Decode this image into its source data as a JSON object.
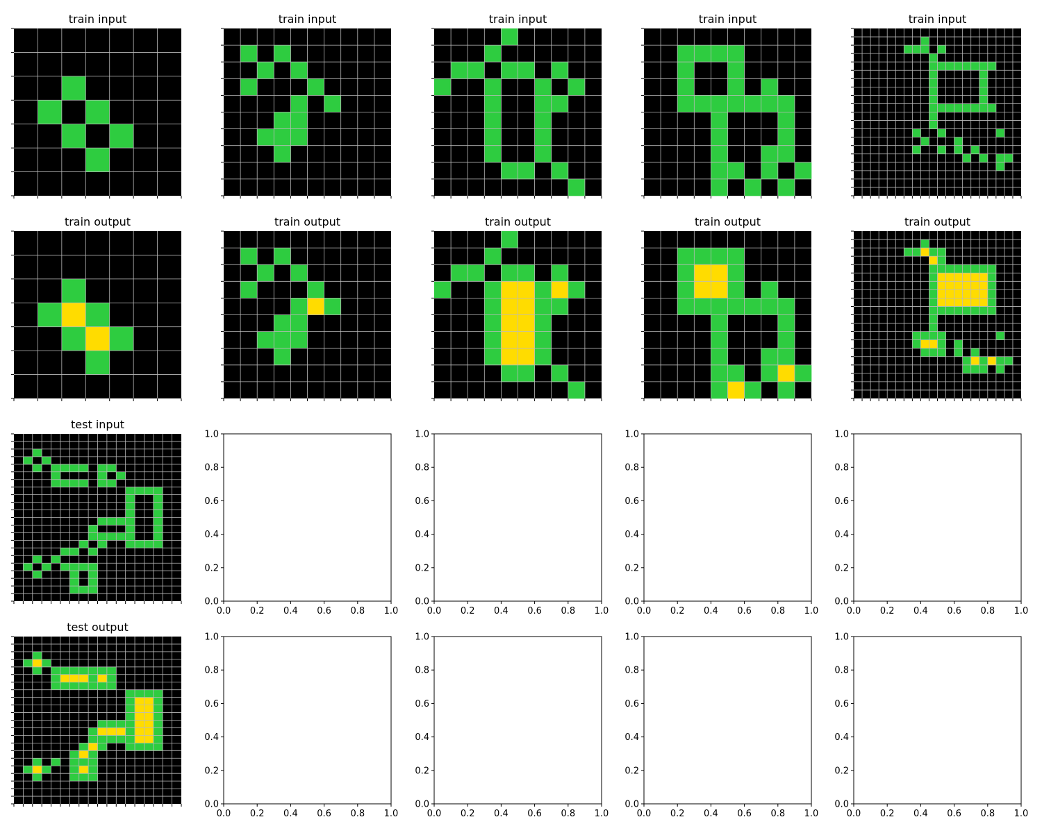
{
  "colors": {
    "background": "#000000",
    "fill": "#2ECC40",
    "highlight": "#FFDC00",
    "grid": "#BBBBBB",
    "axis": "#000000"
  },
  "panels": [
    {
      "title": "train input",
      "rows": [
        "0000000",
        "0000000",
        "0010000",
        "0101000",
        "0010100",
        "0001000",
        "0000000"
      ]
    },
    {
      "title": "train input",
      "rows": [
        "0000000000",
        "0101000000",
        "0010100000",
        "0100010000",
        "0000101000",
        "0001100000",
        "0011100000",
        "0001000000",
        "0000000000",
        "0000000000"
      ]
    },
    {
      "title": "train input",
      "rows": [
        "0000100000",
        "0001000000",
        "0110110100",
        "1001001010",
        "0001001100",
        "0001001000",
        "0001001000",
        "0001001000",
        "0000110100",
        "0000000010"
      ]
    },
    {
      "title": "train input",
      "rows": [
        "0000000000",
        "0011110000",
        "0010010000",
        "0010010100",
        "0011111110",
        "0000100010",
        "0000100010",
        "0000100110",
        "0000110101",
        "0000101010"
      ]
    },
    {
      "title": "train input",
      "rows": [
        "00000000000000000000",
        "00000000100000000000",
        "00000011101000000000",
        "00000000010000000000",
        "00000000011111111000",
        "00000000010000010000",
        "00000000010000010000",
        "00000000010000010000",
        "00000000010000010000",
        "00000000011111111000",
        "00000000010000000000",
        "00000000010000000000",
        "00000001001000000100",
        "00000000100010000000",
        "00000001001010100000",
        "00000000000001010110",
        "00000000000000000100",
        "00000000000000000000",
        "00000000000000000000",
        "00000000000000000000"
      ]
    },
    {
      "title": "train output",
      "rows": [
        "0000000",
        "0000000",
        "0010000",
        "0121000",
        "0012100",
        "0001000",
        "0000000"
      ]
    },
    {
      "title": "train output",
      "rows": [
        "0000000000",
        "0101000000",
        "0010100000",
        "0100010000",
        "0000121000",
        "0001100000",
        "0011100000",
        "0001000000",
        "0000000000",
        "0000000000"
      ]
    },
    {
      "title": "train output",
      "rows": [
        "0000100000",
        "0001000000",
        "0110110100",
        "1001221210",
        "0001221100",
        "0001221000",
        "0001221000",
        "0001221000",
        "0000110100",
        "0000000010"
      ]
    },
    {
      "title": "train output",
      "rows": [
        "0000000000",
        "0011110000",
        "0012210000",
        "0012210100",
        "0011111110",
        "0000100010",
        "0000100010",
        "0000100110",
        "0000110121",
        "0000121010"
      ]
    },
    {
      "title": "train output",
      "rows": [
        "00000000000000000000",
        "00000000100000000000",
        "00000011211000000000",
        "00000000021000000000",
        "00000000011111111000",
        "00000000012222221000",
        "00000000012222221000",
        "00000000012222221000",
        "00000000012222221000",
        "00000000011111111000",
        "00000000010000000000",
        "00000000010000000000",
        "00000001111000000100",
        "00000001221010000000",
        "00000000111010100000",
        "00000000000001212110",
        "00000000000001110100",
        "00000000000000000000",
        "00000000000000000000",
        "00000000000000000000"
      ]
    },
    {
      "title": "test input",
      "rows": [
        "000000000000000000",
        "000000000000000000",
        "001000000000000000",
        "010100000000000000",
        "001011110110000000",
        "000010000101000000",
        "000011110110000000",
        "000000000000111100",
        "000000000000100100",
        "000000000000100100",
        "000000000000100100",
        "000000000111100100",
        "000000001000100100",
        "000000001111100100",
        "000000010100111100",
        "000001101000000000",
        "001010000000000000",
        "010101111000000000",
        "001000101000000000",
        "000000101000000000",
        "000000111000000000",
        "000000000000000000"
      ]
    },
    {
      "title": "",
      "axes": true
    },
    {
      "title": "",
      "axes": true
    },
    {
      "title": "",
      "axes": true
    },
    {
      "title": "",
      "axes": true
    },
    {
      "title": "test output",
      "rows": [
        "000000000000000000",
        "000000000000000000",
        "001000000000000000",
        "012100000000000000",
        "001011111110000000",
        "000012221210000000",
        "000011111110000000",
        "000000000000111100",
        "000000000000122100",
        "000000000000122100",
        "000000000000122100",
        "000000000111122100",
        "000000001222122100",
        "000000001111122100",
        "000000012100111100",
        "000000121000000000",
        "001010111000000000",
        "012100121000000000",
        "001000111000000000",
        "000000000000000000",
        "000000000000000000",
        "000000000000000000"
      ]
    },
    {
      "title": "",
      "axes": true
    },
    {
      "title": "",
      "axes": true
    },
    {
      "title": "",
      "axes": true
    },
    {
      "title": "",
      "axes": true
    }
  ],
  "axis_ticks": [
    "0.0",
    "0.2",
    "0.4",
    "0.6",
    "0.8",
    "1.0"
  ]
}
